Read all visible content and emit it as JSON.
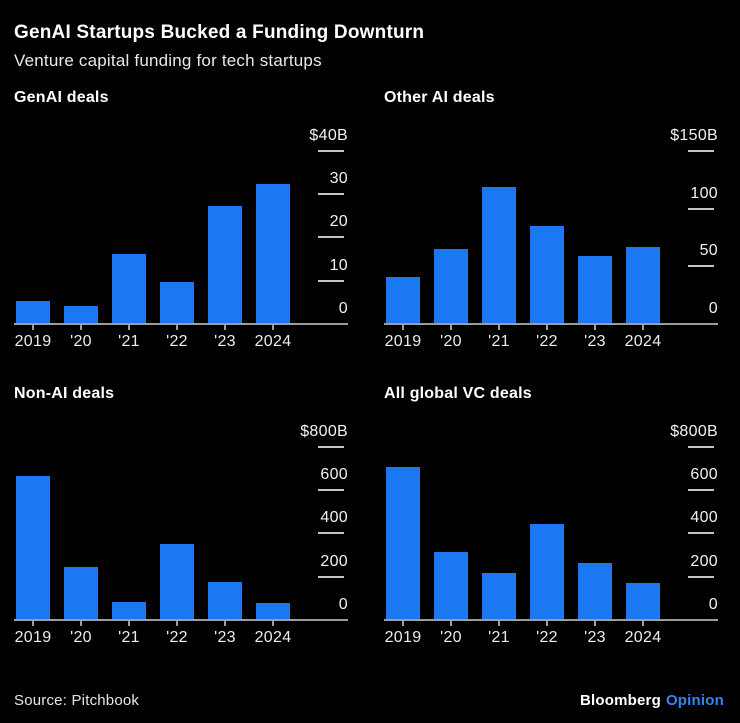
{
  "header": {
    "title": "GenAI Startups Bucked a Funding Downturn",
    "subtitle": "Venture capital funding for tech startups"
  },
  "footer": {
    "source": "Source: Pitchbook",
    "brand": "Bloomberg",
    "brand_suffix": "Opinion"
  },
  "colors": {
    "bar_blue": "#1b77f2",
    "opinion_blue": "#3585f0",
    "axis_line": "#9d9d9d",
    "tick_dash": "#c4c4c4",
    "title_text": "#ffffff",
    "axis_text": "#f2f2f2",
    "background": "#000000"
  },
  "chart_data": [
    {
      "type": "bar",
      "title": "GenAI deals",
      "categories": [
        "2019",
        "'20",
        "'21",
        "'22",
        "'23",
        "2024"
      ],
      "values": [
        5,
        4,
        16,
        9.5,
        27,
        32
      ],
      "ymax": 40,
      "ymax_label": "$40B",
      "yticks": [
        0,
        10,
        20,
        30
      ],
      "ylim": [
        0,
        40
      ],
      "grid": false,
      "legend": "none",
      "axis_side": "right"
    },
    {
      "type": "bar",
      "title": "Other AI deals",
      "categories": [
        "2019",
        "'20",
        "'21",
        "'22",
        "'23",
        "2024"
      ],
      "values": [
        40,
        64,
        118,
        84,
        58,
        66
      ],
      "ymax": 150,
      "ymax_label": "$150B",
      "yticks": [
        0,
        50,
        100
      ],
      "ylim": [
        0,
        150
      ],
      "grid": false,
      "legend": "none",
      "axis_side": "right"
    },
    {
      "type": "bar",
      "title": "Non-AI deals",
      "categories": [
        "2019",
        "'20",
        "'21",
        "'22",
        "'23",
        "2024"
      ],
      "values": [
        660,
        240,
        77,
        345,
        172,
        72
      ],
      "ymax": 800,
      "ymax_label": "$800B",
      "yticks": [
        0,
        200,
        400,
        600
      ],
      "ylim": [
        0,
        800
      ],
      "grid": false,
      "legend": "none",
      "axis_side": "right"
    },
    {
      "type": "bar",
      "title": "All global VC deals",
      "categories": [
        "2019",
        "'20",
        "'21",
        "'22",
        "'23",
        "2024"
      ],
      "values": [
        700,
        310,
        210,
        440,
        258,
        168
      ],
      "ymax": 800,
      "ymax_label": "$800B",
      "yticks": [
        0,
        200,
        400,
        600
      ],
      "ylim": [
        0,
        800
      ],
      "grid": false,
      "legend": "none",
      "axis_side": "right"
    }
  ]
}
